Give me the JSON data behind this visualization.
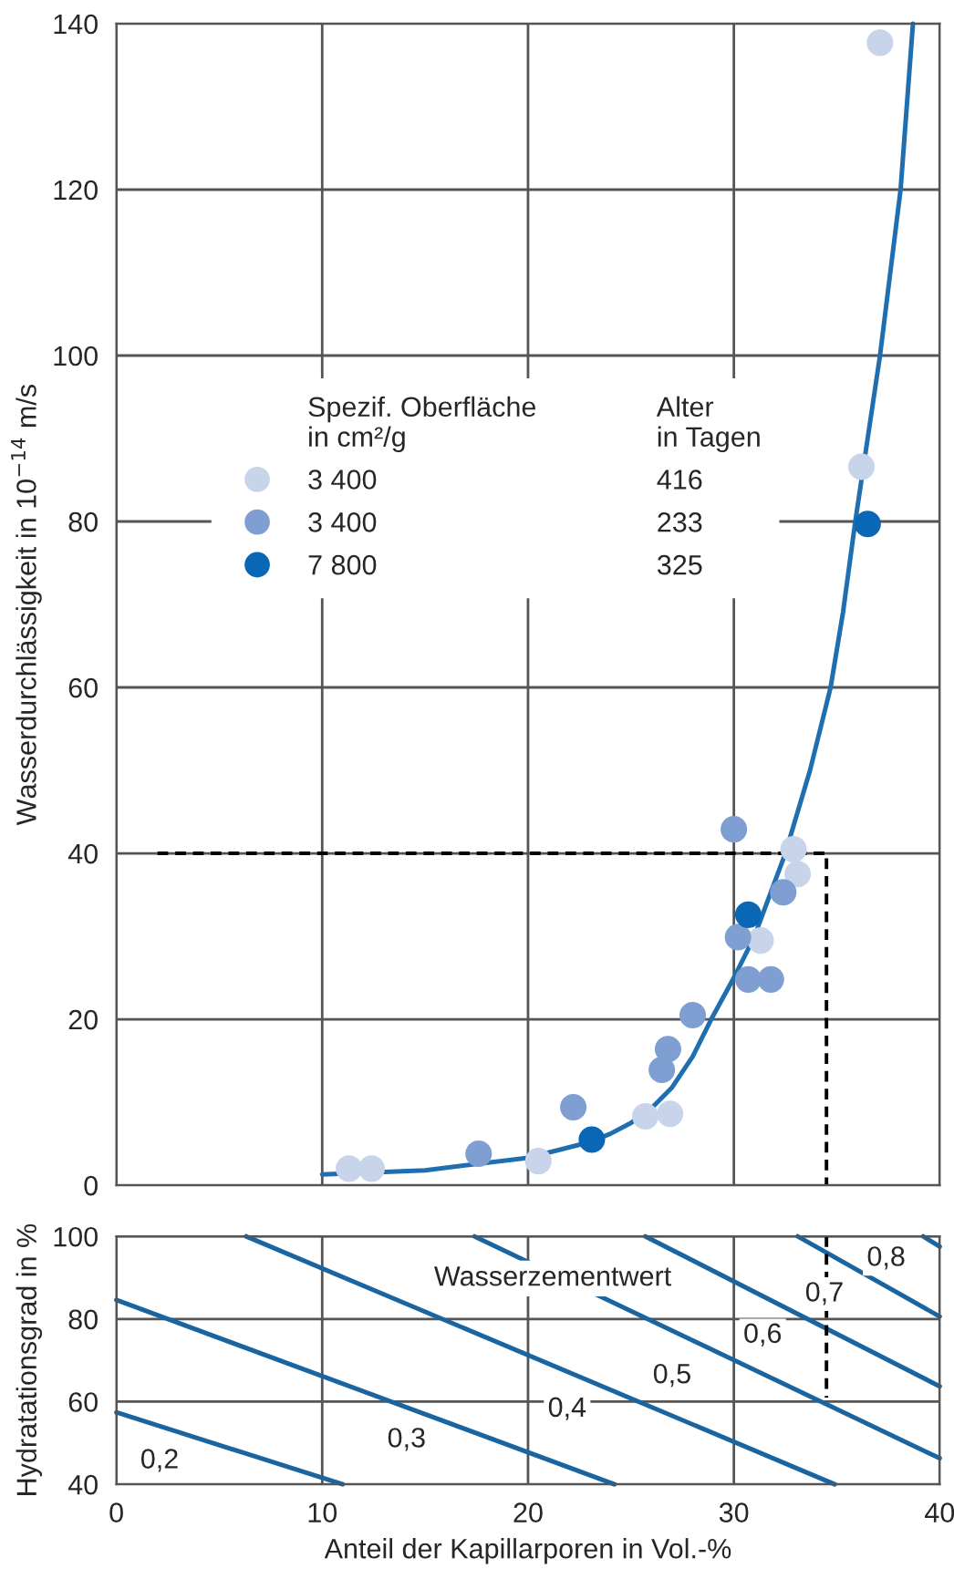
{
  "chart_data": [
    {
      "type": "scatter",
      "ylabel": "Wasserdurchlässigkeit in 10$^{−14}$ m/s",
      "xlim": [
        0,
        40
      ],
      "xticks": [
        0,
        10,
        20,
        30,
        40
      ],
      "ylim": [
        0,
        140
      ],
      "yticks": [
        0,
        20,
        40,
        60,
        80,
        100,
        120,
        140
      ],
      "tick_labels": "y",
      "grid": true,
      "legend": "left",
      "legend_title": "Spezif. Oberfläche\nin cm²/g",
      "annotations": [
        "Alter\nin Tagen",
        "416",
        "233",
        "325"
      ],
      "series": [
        {
          "name": "3 400",
          "color": "#c8d4ea",
          "marker": "circle",
          "x": [
            11.3,
            12.4,
            20.5,
            25.7,
            26.9,
            31.3,
            33.1,
            32.9,
            37.1,
            36.2
          ],
          "values": [
            2.0,
            2.0,
            2.9,
            8.3,
            8.6,
            29.5,
            37.5,
            40.5,
            137.7,
            86.6
          ]
        },
        {
          "name": "3 400",
          "color": "#7f9fd2",
          "marker": "circle",
          "x": [
            17.6,
            22.2,
            26.5,
            26.8,
            28.0,
            30.0,
            30.2,
            30.7,
            31.8,
            32.4
          ],
          "values": [
            3.8,
            9.4,
            13.9,
            16.4,
            20.5,
            42.9,
            29.9,
            24.8,
            24.8,
            35.3
          ]
        },
        {
          "name": "7 800",
          "color": "#0a67b5",
          "marker": "circle",
          "x": [
            23.1,
            30.7,
            36.5
          ],
          "values": [
            5.5,
            32.6,
            79.7
          ]
        },
        {
          "type": "line",
          "color": "#1f6fb0",
          "line_style": "solid",
          "x": [
            10,
            15,
            20,
            23,
            24,
            25,
            26,
            27,
            28,
            28.9,
            30,
            31,
            32.5,
            33.7,
            34.7,
            35.3,
            35.9,
            36.5,
            37.1,
            37.6,
            38.1,
            38.7
          ],
          "values": [
            1.3,
            1.8,
            3.3,
            5.2,
            6.2,
            7.5,
            9.3,
            11.8,
            15.5,
            20,
            25,
            30,
            40,
            50,
            60,
            69,
            80,
            90,
            100,
            110,
            120,
            140
          ]
        },
        {
          "type": "line",
          "color": "#000000",
          "line_style": "dashed",
          "x": [
            2,
            34.5,
            34.5
          ],
          "values": [
            40,
            40,
            0
          ]
        }
      ]
    },
    {
      "type": "line",
      "xlabel": "Anteil der Kapillarporen in Vol.-%",
      "ylabel": "Hydratationsgrad in %",
      "xlim": [
        0,
        40
      ],
      "xticks": [
        0,
        10,
        20,
        30,
        40
      ],
      "ylim": [
        40,
        100
      ],
      "yticks": [
        40,
        60,
        80,
        100
      ],
      "grid": true,
      "annotations": [
        "Wasserzementwert",
        {
          "text": "0,2",
          "x": 2.1,
          "y": 45.6
        },
        {
          "text": "0,3",
          "x": 14.1,
          "y": 50.7
        },
        {
          "text": "0,4",
          "x": 21.9,
          "y": 58.1
        },
        {
          "text": "0,5",
          "x": 27.0,
          "y": 66.2
        },
        {
          "text": "0,6",
          "x": 31.4,
          "y": 76
        },
        {
          "text": "0,7",
          "x": 34.4,
          "y": 86
        },
        {
          "text": "0,8",
          "x": 37.4,
          "y": 94.6
        }
      ],
      "series": [
        {
          "color": "#1a64a0",
          "x": [
            0,
            11.0
          ],
          "values": [
            57.4,
            40
          ]
        },
        {
          "color": "#1a64a0",
          "x": [
            0,
            24.2
          ],
          "values": [
            84.6,
            40
          ]
        },
        {
          "color": "#1a64a0",
          "x": [
            6.3,
            34.9
          ],
          "values": [
            100,
            40
          ]
        },
        {
          "color": "#1a64a0",
          "x": [
            17.4,
            40
          ],
          "values": [
            100,
            46.3
          ]
        },
        {
          "color": "#1a64a0",
          "x": [
            25.7,
            40
          ],
          "values": [
            100,
            63.7
          ]
        },
        {
          "color": "#1a64a0",
          "x": [
            33.1,
            40
          ],
          "values": [
            100,
            80.6
          ]
        },
        {
          "color": "#1a64a0",
          "x": [
            39.2,
            40
          ],
          "values": [
            100,
            97.5
          ]
        },
        {
          "color": "#000000",
          "line_style": "dashed",
          "x": [
            34.5,
            34.5
          ],
          "values": [
            100,
            61
          ]
        }
      ]
    }
  ]
}
